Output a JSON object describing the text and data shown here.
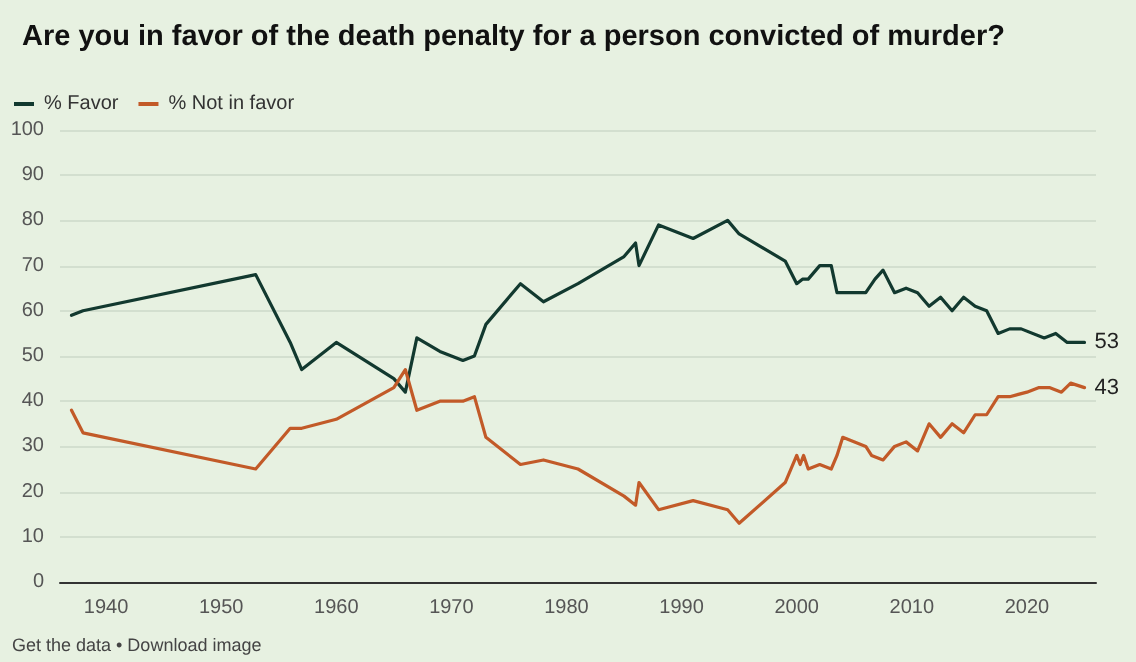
{
  "chart_data": {
    "type": "line",
    "title": "Are you in favor of the death penalty for a person convicted of murder?",
    "legend": "top left",
    "grid": "y",
    "marker": "none",
    "xlim": [
      1936,
      2026
    ],
    "xticks": [
      1940,
      1950,
      1960,
      1970,
      1980,
      1990,
      2000,
      2010,
      2020
    ],
    "ylim": [
      0,
      100
    ],
    "yticks": [
      0,
      10,
      20,
      30,
      40,
      50,
      60,
      70,
      80,
      90,
      100
    ],
    "annotations": [
      "Get the data • Download image"
    ],
    "series": [
      {
        "name": "% Favor",
        "color": "#12392f",
        "x": [
          1937,
          1938,
          1953,
          1956,
          1957,
          1960,
          1965,
          1966,
          1967,
          1969,
          1971,
          1972,
          1973,
          1976,
          1978,
          1981,
          1985,
          1986,
          1986.3,
          1988,
          1991,
          1994,
          1995,
          1999,
          2000,
          2000.5,
          2001,
          2002,
          2003,
          2003.5,
          2006,
          2006.8,
          2007.5,
          2008.5,
          2009.5,
          2010.5,
          2011.5,
          2012.5,
          2013.5,
          2014.5,
          2015.5,
          2016.5,
          2017.5,
          2018.5,
          2019.5,
          2021.5,
          2022.5,
          2023.5,
          2025
        ],
        "values": [
          59,
          60,
          68,
          53,
          47,
          53,
          45,
          42,
          54,
          51,
          49,
          50,
          57,
          66,
          62,
          66,
          72,
          75,
          70,
          79,
          76,
          80,
          77,
          71,
          66,
          67,
          67,
          70,
          70,
          64,
          64,
          67,
          69,
          64,
          65,
          64,
          61,
          63,
          60,
          63,
          61,
          60,
          55,
          56,
          56,
          54,
          55,
          53,
          53
        ],
        "value_labels": [
          null,
          null,
          null,
          null,
          null,
          null,
          null,
          null,
          null,
          null,
          null,
          null,
          null,
          null,
          null,
          null,
          null,
          null,
          null,
          null,
          null,
          null,
          null,
          null,
          null,
          null,
          null,
          null,
          null,
          null,
          null,
          null,
          null,
          null,
          null,
          null,
          null,
          null,
          null,
          null,
          null,
          null,
          null,
          null,
          null,
          null,
          null,
          null,
          "53"
        ]
      },
      {
        "name": "% Not in favor",
        "color": "#c25a28",
        "x": [
          1937,
          1938,
          1953,
          1956,
          1957,
          1960,
          1965,
          1966,
          1967,
          1969,
          1971,
          1972,
          1973,
          1976,
          1978,
          1981,
          1985,
          1986,
          1986.3,
          1988,
          1991,
          1994,
          1995,
          1999,
          2000,
          2000.3,
          2000.6,
          2001,
          2002,
          2003,
          2003.5,
          2004,
          2006,
          2006.5,
          2007.5,
          2008.5,
          2009.5,
          2010.5,
          2011.5,
          2012.5,
          2013.5,
          2014.5,
          2015.5,
          2016.5,
          2017.5,
          2018.5,
          2020,
          2021,
          2022,
          2023,
          2023.8,
          2025
        ],
        "values": [
          38,
          33,
          25,
          34,
          34,
          36,
          43,
          47,
          38,
          40,
          40,
          41,
          32,
          26,
          27,
          25,
          19,
          17,
          22,
          16,
          18,
          16,
          13,
          22,
          28,
          26,
          28,
          25,
          26,
          25,
          28,
          32,
          30,
          28,
          27,
          30,
          31,
          29,
          35,
          32,
          35,
          33,
          37,
          37,
          41,
          41,
          42,
          43,
          43,
          42,
          44,
          43
        ],
        "value_labels": [
          null,
          null,
          null,
          null,
          null,
          null,
          null,
          null,
          null,
          null,
          null,
          null,
          null,
          null,
          null,
          null,
          null,
          null,
          null,
          null,
          null,
          null,
          null,
          null,
          null,
          null,
          null,
          null,
          null,
          null,
          null,
          null,
          null,
          null,
          null,
          null,
          null,
          null,
          null,
          null,
          null,
          null,
          null,
          null,
          null,
          null,
          null,
          null,
          null,
          null,
          null,
          "43"
        ]
      }
    ]
  }
}
